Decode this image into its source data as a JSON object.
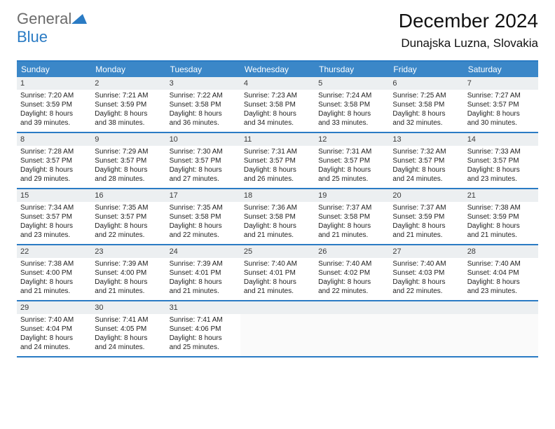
{
  "logo": {
    "general": "General",
    "blue": "Blue"
  },
  "title": "December 2024",
  "location": "Dunajska Luzna, Slovakia",
  "colors": {
    "header_bg": "#3b87c8",
    "header_text": "#ffffff",
    "border": "#2a7bc4",
    "daynum_bg": "#eceff1",
    "logo_gray": "#6b6b6b",
    "logo_blue": "#2a7bc4"
  },
  "weekdays": [
    "Sunday",
    "Monday",
    "Tuesday",
    "Wednesday",
    "Thursday",
    "Friday",
    "Saturday"
  ],
  "weeks": [
    [
      {
        "n": "1",
        "sr": "Sunrise: 7:20 AM",
        "ss": "Sunset: 3:59 PM",
        "d1": "Daylight: 8 hours",
        "d2": "and 39 minutes."
      },
      {
        "n": "2",
        "sr": "Sunrise: 7:21 AM",
        "ss": "Sunset: 3:59 PM",
        "d1": "Daylight: 8 hours",
        "d2": "and 38 minutes."
      },
      {
        "n": "3",
        "sr": "Sunrise: 7:22 AM",
        "ss": "Sunset: 3:58 PM",
        "d1": "Daylight: 8 hours",
        "d2": "and 36 minutes."
      },
      {
        "n": "4",
        "sr": "Sunrise: 7:23 AM",
        "ss": "Sunset: 3:58 PM",
        "d1": "Daylight: 8 hours",
        "d2": "and 34 minutes."
      },
      {
        "n": "5",
        "sr": "Sunrise: 7:24 AM",
        "ss": "Sunset: 3:58 PM",
        "d1": "Daylight: 8 hours",
        "d2": "and 33 minutes."
      },
      {
        "n": "6",
        "sr": "Sunrise: 7:25 AM",
        "ss": "Sunset: 3:58 PM",
        "d1": "Daylight: 8 hours",
        "d2": "and 32 minutes."
      },
      {
        "n": "7",
        "sr": "Sunrise: 7:27 AM",
        "ss": "Sunset: 3:57 PM",
        "d1": "Daylight: 8 hours",
        "d2": "and 30 minutes."
      }
    ],
    [
      {
        "n": "8",
        "sr": "Sunrise: 7:28 AM",
        "ss": "Sunset: 3:57 PM",
        "d1": "Daylight: 8 hours",
        "d2": "and 29 minutes."
      },
      {
        "n": "9",
        "sr": "Sunrise: 7:29 AM",
        "ss": "Sunset: 3:57 PM",
        "d1": "Daylight: 8 hours",
        "d2": "and 28 minutes."
      },
      {
        "n": "10",
        "sr": "Sunrise: 7:30 AM",
        "ss": "Sunset: 3:57 PM",
        "d1": "Daylight: 8 hours",
        "d2": "and 27 minutes."
      },
      {
        "n": "11",
        "sr": "Sunrise: 7:31 AM",
        "ss": "Sunset: 3:57 PM",
        "d1": "Daylight: 8 hours",
        "d2": "and 26 minutes."
      },
      {
        "n": "12",
        "sr": "Sunrise: 7:31 AM",
        "ss": "Sunset: 3:57 PM",
        "d1": "Daylight: 8 hours",
        "d2": "and 25 minutes."
      },
      {
        "n": "13",
        "sr": "Sunrise: 7:32 AM",
        "ss": "Sunset: 3:57 PM",
        "d1": "Daylight: 8 hours",
        "d2": "and 24 minutes."
      },
      {
        "n": "14",
        "sr": "Sunrise: 7:33 AM",
        "ss": "Sunset: 3:57 PM",
        "d1": "Daylight: 8 hours",
        "d2": "and 23 minutes."
      }
    ],
    [
      {
        "n": "15",
        "sr": "Sunrise: 7:34 AM",
        "ss": "Sunset: 3:57 PM",
        "d1": "Daylight: 8 hours",
        "d2": "and 23 minutes."
      },
      {
        "n": "16",
        "sr": "Sunrise: 7:35 AM",
        "ss": "Sunset: 3:57 PM",
        "d1": "Daylight: 8 hours",
        "d2": "and 22 minutes."
      },
      {
        "n": "17",
        "sr": "Sunrise: 7:35 AM",
        "ss": "Sunset: 3:58 PM",
        "d1": "Daylight: 8 hours",
        "d2": "and 22 minutes."
      },
      {
        "n": "18",
        "sr": "Sunrise: 7:36 AM",
        "ss": "Sunset: 3:58 PM",
        "d1": "Daylight: 8 hours",
        "d2": "and 21 minutes."
      },
      {
        "n": "19",
        "sr": "Sunrise: 7:37 AM",
        "ss": "Sunset: 3:58 PM",
        "d1": "Daylight: 8 hours",
        "d2": "and 21 minutes."
      },
      {
        "n": "20",
        "sr": "Sunrise: 7:37 AM",
        "ss": "Sunset: 3:59 PM",
        "d1": "Daylight: 8 hours",
        "d2": "and 21 minutes."
      },
      {
        "n": "21",
        "sr": "Sunrise: 7:38 AM",
        "ss": "Sunset: 3:59 PM",
        "d1": "Daylight: 8 hours",
        "d2": "and 21 minutes."
      }
    ],
    [
      {
        "n": "22",
        "sr": "Sunrise: 7:38 AM",
        "ss": "Sunset: 4:00 PM",
        "d1": "Daylight: 8 hours",
        "d2": "and 21 minutes."
      },
      {
        "n": "23",
        "sr": "Sunrise: 7:39 AM",
        "ss": "Sunset: 4:00 PM",
        "d1": "Daylight: 8 hours",
        "d2": "and 21 minutes."
      },
      {
        "n": "24",
        "sr": "Sunrise: 7:39 AM",
        "ss": "Sunset: 4:01 PM",
        "d1": "Daylight: 8 hours",
        "d2": "and 21 minutes."
      },
      {
        "n": "25",
        "sr": "Sunrise: 7:40 AM",
        "ss": "Sunset: 4:01 PM",
        "d1": "Daylight: 8 hours",
        "d2": "and 21 minutes."
      },
      {
        "n": "26",
        "sr": "Sunrise: 7:40 AM",
        "ss": "Sunset: 4:02 PM",
        "d1": "Daylight: 8 hours",
        "d2": "and 22 minutes."
      },
      {
        "n": "27",
        "sr": "Sunrise: 7:40 AM",
        "ss": "Sunset: 4:03 PM",
        "d1": "Daylight: 8 hours",
        "d2": "and 22 minutes."
      },
      {
        "n": "28",
        "sr": "Sunrise: 7:40 AM",
        "ss": "Sunset: 4:04 PM",
        "d1": "Daylight: 8 hours",
        "d2": "and 23 minutes."
      }
    ],
    [
      {
        "n": "29",
        "sr": "Sunrise: 7:40 AM",
        "ss": "Sunset: 4:04 PM",
        "d1": "Daylight: 8 hours",
        "d2": "and 24 minutes."
      },
      {
        "n": "30",
        "sr": "Sunrise: 7:41 AM",
        "ss": "Sunset: 4:05 PM",
        "d1": "Daylight: 8 hours",
        "d2": "and 24 minutes."
      },
      {
        "n": "31",
        "sr": "Sunrise: 7:41 AM",
        "ss": "Sunset: 4:06 PM",
        "d1": "Daylight: 8 hours",
        "d2": "and 25 minutes."
      },
      {
        "empty": true
      },
      {
        "empty": true
      },
      {
        "empty": true
      },
      {
        "empty": true
      }
    ]
  ]
}
